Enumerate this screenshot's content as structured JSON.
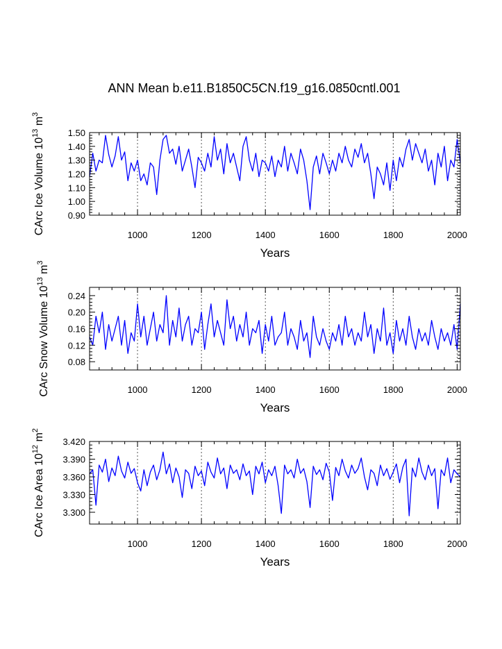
{
  "figure": {
    "title": "ANN Mean b.e11.B1850C5CN.f19_g16.0850cntl.001"
  },
  "chart_data": [
    {
      "type": "line",
      "title": "",
      "xlabel": "Years",
      "ylabel_parts": [
        "CArc Ice Volume 10",
        "13",
        " m",
        "3"
      ],
      "xlim": [
        850,
        2010
      ],
      "ylim": [
        0.9,
        1.5
      ],
      "xticks": [
        "1000",
        "1200",
        "1400",
        "1600",
        "1800",
        "2000"
      ],
      "yticks": [
        "0.90",
        "1.00",
        "1.10",
        "1.20",
        "1.30",
        "1.40",
        "1.50"
      ],
      "vlines": [
        1000,
        1200,
        1400,
        1600,
        1800,
        2000
      ],
      "line_color": "#0000ff",
      "series": [
        {
          "name": "CArc Ice Volume",
          "x": [
            850,
            860,
            870,
            880,
            890,
            900,
            910,
            920,
            930,
            940,
            950,
            960,
            970,
            980,
            990,
            1000,
            1010,
            1020,
            1030,
            1040,
            1050,
            1060,
            1070,
            1080,
            1090,
            1100,
            1110,
            1120,
            1130,
            1140,
            1150,
            1160,
            1170,
            1180,
            1190,
            1200,
            1210,
            1220,
            1230,
            1240,
            1250,
            1260,
            1270,
            1280,
            1290,
            1300,
            1310,
            1320,
            1330,
            1340,
            1350,
            1360,
            1370,
            1380,
            1390,
            1400,
            1410,
            1420,
            1430,
            1440,
            1450,
            1460,
            1470,
            1480,
            1490,
            1500,
            1510,
            1520,
            1530,
            1540,
            1550,
            1560,
            1570,
            1580,
            1590,
            1600,
            1610,
            1620,
            1630,
            1640,
            1650,
            1660,
            1670,
            1680,
            1690,
            1700,
            1710,
            1720,
            1730,
            1740,
            1750,
            1760,
            1770,
            1780,
            1790,
            1800,
            1810,
            1820,
            1830,
            1840,
            1850,
            1860,
            1870,
            1880,
            1890,
            1900,
            1910,
            1920,
            1930,
            1940,
            1950,
            1960,
            1970,
            1980,
            1990,
            2000,
            2010
          ],
          "values": [
            1.18,
            1.35,
            1.22,
            1.3,
            1.28,
            1.48,
            1.34,
            1.25,
            1.33,
            1.47,
            1.3,
            1.36,
            1.15,
            1.28,
            1.22,
            1.3,
            1.15,
            1.2,
            1.12,
            1.28,
            1.25,
            1.05,
            1.3,
            1.45,
            1.48,
            1.35,
            1.38,
            1.27,
            1.4,
            1.22,
            1.3,
            1.38,
            1.25,
            1.1,
            1.32,
            1.28,
            1.22,
            1.35,
            1.25,
            1.47,
            1.3,
            1.38,
            1.2,
            1.42,
            1.28,
            1.35,
            1.25,
            1.15,
            1.4,
            1.47,
            1.3,
            1.22,
            1.35,
            1.18,
            1.3,
            1.28,
            1.22,
            1.33,
            1.18,
            1.3,
            1.25,
            1.4,
            1.22,
            1.35,
            1.28,
            1.2,
            1.38,
            1.3,
            1.15,
            0.94,
            1.25,
            1.33,
            1.2,
            1.35,
            1.28,
            1.2,
            1.3,
            1.22,
            1.35,
            1.28,
            1.4,
            1.3,
            1.25,
            1.38,
            1.32,
            1.42,
            1.28,
            1.35,
            1.2,
            1.02,
            1.25,
            1.2,
            1.12,
            1.28,
            1.08,
            1.3,
            1.15,
            1.32,
            1.25,
            1.38,
            1.45,
            1.3,
            1.42,
            1.35,
            1.28,
            1.38,
            1.22,
            1.3,
            1.12,
            1.35,
            1.25,
            1.4,
            1.15,
            1.3,
            1.25,
            1.45,
            1.28
          ]
        }
      ]
    },
    {
      "type": "line",
      "title": "",
      "xlabel": "Years",
      "ylabel_parts": [
        "CArc Snow Volume 10",
        "13",
        " m",
        "3"
      ],
      "xlim": [
        850,
        2010
      ],
      "ylim": [
        0.06,
        0.26
      ],
      "xticks": [
        "1000",
        "1200",
        "1400",
        "1600",
        "1800",
        "2000"
      ],
      "yticks": [
        "0.08",
        "0.12",
        "0.16",
        "0.20",
        "0.24"
      ],
      "vlines": [
        1000,
        1200,
        1400,
        1600,
        1800,
        2000
      ],
      "line_color": "#0000ff",
      "series": [
        {
          "name": "CArc Snow Volume",
          "x": [
            850,
            860,
            870,
            880,
            890,
            900,
            910,
            920,
            930,
            940,
            950,
            960,
            970,
            980,
            990,
            1000,
            1010,
            1020,
            1030,
            1040,
            1050,
            1060,
            1070,
            1080,
            1090,
            1100,
            1110,
            1120,
            1130,
            1140,
            1150,
            1160,
            1170,
            1180,
            1190,
            1200,
            1210,
            1220,
            1230,
            1240,
            1250,
            1260,
            1270,
            1280,
            1290,
            1300,
            1310,
            1320,
            1330,
            1340,
            1350,
            1360,
            1370,
            1380,
            1390,
            1400,
            1410,
            1420,
            1430,
            1440,
            1450,
            1460,
            1470,
            1480,
            1490,
            1500,
            1510,
            1520,
            1530,
            1540,
            1550,
            1560,
            1570,
            1580,
            1590,
            1600,
            1610,
            1620,
            1630,
            1640,
            1650,
            1660,
            1670,
            1680,
            1690,
            1700,
            1710,
            1720,
            1730,
            1740,
            1750,
            1760,
            1770,
            1780,
            1790,
            1800,
            1810,
            1820,
            1830,
            1840,
            1850,
            1860,
            1870,
            1880,
            1890,
            1900,
            1910,
            1920,
            1930,
            1940,
            1950,
            1960,
            1970,
            1980,
            1990,
            2000,
            2010
          ],
          "values": [
            0.14,
            0.12,
            0.19,
            0.15,
            0.2,
            0.11,
            0.17,
            0.13,
            0.16,
            0.19,
            0.12,
            0.18,
            0.1,
            0.15,
            0.13,
            0.22,
            0.14,
            0.19,
            0.12,
            0.16,
            0.2,
            0.13,
            0.17,
            0.15,
            0.24,
            0.12,
            0.18,
            0.14,
            0.21,
            0.13,
            0.17,
            0.19,
            0.12,
            0.16,
            0.15,
            0.2,
            0.11,
            0.17,
            0.22,
            0.14,
            0.18,
            0.15,
            0.12,
            0.23,
            0.16,
            0.19,
            0.13,
            0.17,
            0.14,
            0.2,
            0.12,
            0.16,
            0.15,
            0.18,
            0.1,
            0.17,
            0.13,
            0.19,
            0.12,
            0.14,
            0.15,
            0.2,
            0.12,
            0.16,
            0.14,
            0.11,
            0.18,
            0.13,
            0.15,
            0.09,
            0.19,
            0.14,
            0.12,
            0.16,
            0.13,
            0.11,
            0.15,
            0.13,
            0.17,
            0.12,
            0.19,
            0.14,
            0.16,
            0.12,
            0.15,
            0.13,
            0.2,
            0.14,
            0.17,
            0.1,
            0.16,
            0.13,
            0.21,
            0.12,
            0.15,
            0.1,
            0.18,
            0.13,
            0.16,
            0.12,
            0.19,
            0.14,
            0.11,
            0.16,
            0.13,
            0.15,
            0.12,
            0.18,
            0.14,
            0.11,
            0.16,
            0.13,
            0.15,
            0.12,
            0.17,
            0.11,
            0.22
          ]
        }
      ]
    },
    {
      "type": "line",
      "title": "",
      "xlabel": "Years",
      "ylabel_parts": [
        "CArc Ice Area 10",
        "12",
        " m",
        "2"
      ],
      "xlim": [
        850,
        2010
      ],
      "ylim": [
        3.28,
        3.42
      ],
      "xticks": [
        "1000",
        "1200",
        "1400",
        "1600",
        "1800",
        "2000"
      ],
      "yticks": [
        "3.300",
        "3.330",
        "3.360",
        "3.390",
        "3.420"
      ],
      "vlines": [
        1000,
        1200,
        1400,
        1600,
        1800,
        2000
      ],
      "line_color": "#0000ff",
      "series": [
        {
          "name": "CArc Ice Area",
          "x": [
            850,
            860,
            870,
            880,
            890,
            900,
            910,
            920,
            930,
            940,
            950,
            960,
            970,
            980,
            990,
            1000,
            1010,
            1020,
            1030,
            1040,
            1050,
            1060,
            1070,
            1080,
            1090,
            1100,
            1110,
            1120,
            1130,
            1140,
            1150,
            1160,
            1170,
            1180,
            1190,
            1200,
            1210,
            1220,
            1230,
            1240,
            1250,
            1260,
            1270,
            1280,
            1290,
            1300,
            1310,
            1320,
            1330,
            1340,
            1350,
            1360,
            1370,
            1380,
            1390,
            1400,
            1410,
            1420,
            1430,
            1440,
            1450,
            1460,
            1470,
            1480,
            1490,
            1500,
            1510,
            1520,
            1530,
            1540,
            1550,
            1560,
            1570,
            1580,
            1590,
            1600,
            1610,
            1620,
            1630,
            1640,
            1650,
            1660,
            1670,
            1680,
            1690,
            1700,
            1710,
            1720,
            1730,
            1740,
            1750,
            1760,
            1770,
            1780,
            1790,
            1800,
            1810,
            1820,
            1830,
            1840,
            1850,
            1860,
            1870,
            1880,
            1890,
            1900,
            1910,
            1920,
            1930,
            1940,
            1950,
            1960,
            1970,
            1980,
            1990,
            2000,
            2010
          ],
          "values": [
            3.365,
            3.372,
            3.312,
            3.38,
            3.368,
            3.39,
            3.352,
            3.375,
            3.362,
            3.395,
            3.37,
            3.358,
            3.385,
            3.366,
            3.374,
            3.35,
            3.336,
            3.372,
            3.345,
            3.368,
            3.38,
            3.355,
            3.372,
            3.402,
            3.365,
            3.382,
            3.35,
            3.375,
            3.36,
            3.325,
            3.372,
            3.366,
            3.34,
            3.378,
            3.362,
            3.37,
            3.345,
            3.385,
            3.368,
            3.358,
            3.392,
            3.365,
            3.375,
            3.34,
            3.38,
            3.366,
            3.372,
            3.355,
            3.382,
            3.362,
            3.37,
            3.33,
            3.378,
            3.365,
            3.385,
            3.35,
            3.372,
            3.362,
            3.378,
            3.345,
            3.298,
            3.38,
            3.365,
            3.372,
            3.358,
            3.39,
            3.366,
            3.374,
            3.352,
            3.308,
            3.378,
            3.364,
            3.372,
            3.355,
            3.383,
            3.368,
            3.32,
            3.376,
            3.362,
            3.39,
            3.37,
            3.358,
            3.38,
            3.366,
            3.374,
            3.392,
            3.36,
            3.338,
            3.372,
            3.366,
            3.345,
            3.38,
            3.362,
            3.374,
            3.356,
            3.368,
            3.382,
            3.35,
            3.376,
            3.39,
            3.294,
            3.375,
            3.36,
            3.392,
            3.368,
            3.355,
            3.38,
            3.362,
            3.374,
            3.306,
            3.372,
            3.362,
            3.392,
            3.35,
            3.372,
            3.365,
            3.36
          ]
        }
      ]
    }
  ]
}
